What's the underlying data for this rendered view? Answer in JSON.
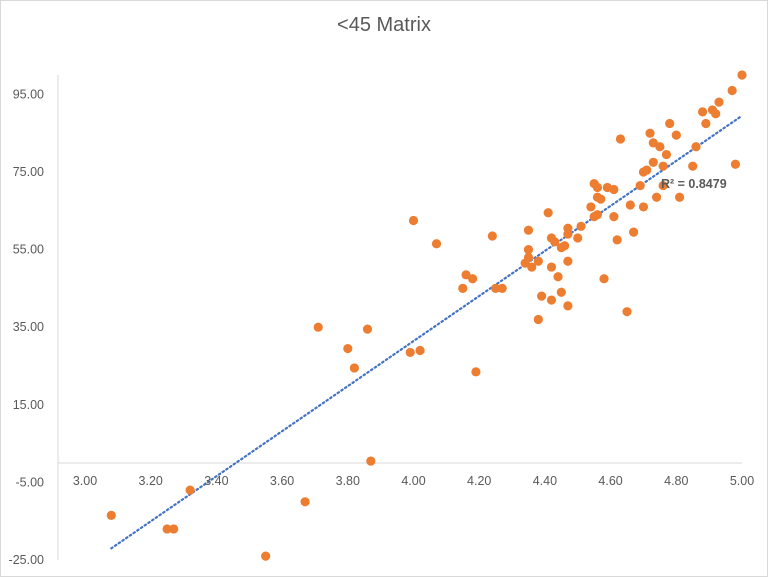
{
  "chart_data": {
    "type": "scatter",
    "title": "<45 Matrix",
    "xlabel": "",
    "ylabel": "",
    "xlim": [
      3.0,
      5.0
    ],
    "ylim": [
      -25,
      100
    ],
    "x_tick_labels": [
      "3.00",
      "3.20",
      "3.40",
      "3.60",
      "3.80",
      "4.00",
      "4.20",
      "4.40",
      "4.60",
      "4.80",
      "5.00"
    ],
    "x_tick_values": [
      3.0,
      3.2,
      3.4,
      3.6,
      3.8,
      4.0,
      4.2,
      4.4,
      4.6,
      4.8,
      5.0
    ],
    "y_tick_labels": [
      "-25.00",
      "-5.00",
      "15.00",
      "35.00",
      "55.00",
      "75.00",
      "95.00"
    ],
    "y_tick_values": [
      -25,
      -5,
      15,
      35,
      55,
      75,
      95
    ],
    "grid": false,
    "legend": "none",
    "marker_color": "#ED7D31",
    "trendline": {
      "type": "linear",
      "color": "#4472C4",
      "style": "dotted",
      "x_range": [
        3.08,
        5.0
      ],
      "y_at_start": -22.0,
      "y_at_end": 89.5,
      "r_squared_label": "R² = 0.8479"
    },
    "points": [
      [
        3.08,
        -13.5
      ],
      [
        3.25,
        -17.0
      ],
      [
        3.27,
        -17.0
      ],
      [
        3.32,
        -7.0
      ],
      [
        3.55,
        -24.0
      ],
      [
        3.67,
        -10.0
      ],
      [
        3.71,
        35.0
      ],
      [
        3.8,
        29.5
      ],
      [
        3.82,
        24.5
      ],
      [
        3.86,
        34.5
      ],
      [
        3.87,
        0.5
      ],
      [
        3.99,
        28.5
      ],
      [
        4.0,
        62.5
      ],
      [
        4.02,
        29.0
      ],
      [
        4.07,
        56.5
      ],
      [
        4.15,
        45.0
      ],
      [
        4.16,
        48.5
      ],
      [
        4.18,
        47.5
      ],
      [
        4.19,
        23.5
      ],
      [
        4.24,
        58.5
      ],
      [
        4.25,
        45.0
      ],
      [
        4.27,
        45.0
      ],
      [
        4.34,
        51.5
      ],
      [
        4.35,
        53.0
      ],
      [
        4.35,
        60.0
      ],
      [
        4.35,
        55.0
      ],
      [
        4.36,
        50.5
      ],
      [
        4.38,
        52.0
      ],
      [
        4.38,
        37.0
      ],
      [
        4.39,
        43.0
      ],
      [
        4.41,
        64.5
      ],
      [
        4.42,
        50.5
      ],
      [
        4.42,
        42.0
      ],
      [
        4.42,
        58.0
      ],
      [
        4.43,
        57.0
      ],
      [
        4.44,
        48.0
      ],
      [
        4.45,
        44.0
      ],
      [
        4.45,
        55.5
      ],
      [
        4.46,
        56.0
      ],
      [
        4.47,
        60.5
      ],
      [
        4.47,
        40.5
      ],
      [
        4.47,
        59.0
      ],
      [
        4.47,
        52.0
      ],
      [
        4.5,
        58.0
      ],
      [
        4.51,
        61.0
      ],
      [
        4.54,
        66.0
      ],
      [
        4.55,
        72.0
      ],
      [
        4.55,
        63.5
      ],
      [
        4.56,
        71.0
      ],
      [
        4.56,
        64.0
      ],
      [
        4.56,
        68.5
      ],
      [
        4.57,
        68.0
      ],
      [
        4.58,
        47.5
      ],
      [
        4.59,
        71.0
      ],
      [
        4.61,
        70.5
      ],
      [
        4.61,
        63.5
      ],
      [
        4.62,
        57.5
      ],
      [
        4.63,
        83.5
      ],
      [
        4.65,
        39.0
      ],
      [
        4.66,
        66.5
      ],
      [
        4.67,
        59.5
      ],
      [
        4.69,
        71.5
      ],
      [
        4.7,
        75.0
      ],
      [
        4.7,
        66.0
      ],
      [
        4.71,
        75.5
      ],
      [
        4.72,
        85.0
      ],
      [
        4.73,
        77.5
      ],
      [
        4.73,
        82.5
      ],
      [
        4.74,
        68.5
      ],
      [
        4.75,
        81.5
      ],
      [
        4.76,
        71.5
      ],
      [
        4.76,
        76.5
      ],
      [
        4.77,
        79.5
      ],
      [
        4.78,
        87.5
      ],
      [
        4.8,
        84.5
      ],
      [
        4.81,
        68.5
      ],
      [
        4.85,
        76.5
      ],
      [
        4.86,
        81.5
      ],
      [
        4.88,
        90.5
      ],
      [
        4.89,
        87.5
      ],
      [
        4.91,
        91.0
      ],
      [
        4.92,
        90.0
      ],
      [
        4.93,
        93.0
      ],
      [
        4.97,
        96.0
      ],
      [
        4.98,
        77.0
      ],
      [
        5.0,
        100.0
      ]
    ]
  }
}
